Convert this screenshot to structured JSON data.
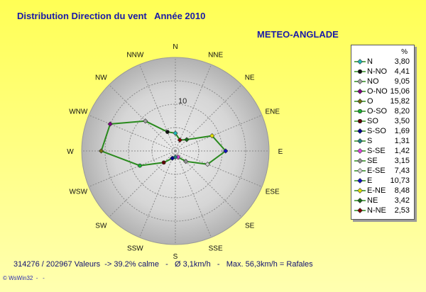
{
  "header": {
    "title": "Distribution Direction du vent   Année 2010",
    "station": "METEO-ANGLADE"
  },
  "footer": {
    "summary": "314276 / 202967 Valeurs  -> 39.2% calme   -   Ø 3,1km/h   -   Max. 56,3km/h = Rafales",
    "credit": "© WsWin32  -   -"
  },
  "colors": {
    "background_top": "#ffff66",
    "background_bottom": "#ffffaa",
    "title_text": "#1a1aa8",
    "polygon": "#2a8a1e"
  },
  "chart_data": {
    "type": "polar",
    "title": "Distribution Direction du vent   Année 2010",
    "directions": [
      "N",
      "NNE",
      "NE",
      "ENE",
      "E",
      "ESE",
      "SE",
      "SSE",
      "S",
      "SSW",
      "SW",
      "WSW",
      "W",
      "WNW",
      "NW",
      "NNW"
    ],
    "ring_label": "10",
    "rlim": [
      0,
      20
    ],
    "grid": true,
    "legend_position": "right",
    "legend_header": "%",
    "series": [
      {
        "label": "N",
        "value": 3.8,
        "display": "3,80",
        "direction_index": 0,
        "color": "#20b8b8",
        "marker": "diamond"
      },
      {
        "label": "N-NO",
        "value": 4.41,
        "display": "4,41",
        "direction_index": 15,
        "color": "#101010",
        "marker": "circle"
      },
      {
        "label": "NO",
        "value": 9.05,
        "display": "9,05",
        "direction_index": 14,
        "color": "#a0a0a0",
        "marker": "diamond"
      },
      {
        "label": "O-NO",
        "value": 15.06,
        "display": "15,06",
        "direction_index": 13,
        "color": "#800080",
        "marker": "diamond"
      },
      {
        "label": "O",
        "value": 15.82,
        "display": "15,82",
        "direction_index": 12,
        "color": "#707010",
        "marker": "diamond"
      },
      {
        "label": "O-SO",
        "value": 8.2,
        "display": "8,20",
        "direction_index": 11,
        "color": "#18b030",
        "marker": "circle"
      },
      {
        "label": "SO",
        "value": 3.5,
        "display": "3,50",
        "direction_index": 10,
        "color": "#600000",
        "marker": "circle"
      },
      {
        "label": "S-SO",
        "value": 1.69,
        "display": "1,69",
        "direction_index": 9,
        "color": "#000090",
        "marker": "diamond"
      },
      {
        "label": "S",
        "value": 1.31,
        "display": "1,31",
        "direction_index": 8,
        "color": "#208080",
        "marker": "diamond"
      },
      {
        "label": "S-SE",
        "value": 1.42,
        "display": "1,42",
        "direction_index": 7,
        "color": "#e040e0",
        "marker": "diamond"
      },
      {
        "label": "SE",
        "value": 3.15,
        "display": "3,15",
        "direction_index": 6,
        "color": "#909090",
        "marker": "diamond"
      },
      {
        "label": "E-SE",
        "value": 7.43,
        "display": "7,43",
        "direction_index": 5,
        "color": "#d0d0d0",
        "marker": "diamond"
      },
      {
        "label": "E",
        "value": 10.73,
        "display": "10,73",
        "direction_index": 4,
        "color": "#1010c0",
        "marker": "diamond"
      },
      {
        "label": "E-NE",
        "value": 8.48,
        "display": "8,48",
        "direction_index": 3,
        "color": "#e0e000",
        "marker": "diamond"
      },
      {
        "label": "NE",
        "value": 3.42,
        "display": "3,42",
        "direction_index": 2,
        "color": "#1a6a1a",
        "marker": "diamond"
      },
      {
        "label": "N-NE",
        "value": 2.53,
        "display": "2,53",
        "direction_index": 1,
        "color": "#800000",
        "marker": "diamond"
      }
    ]
  }
}
